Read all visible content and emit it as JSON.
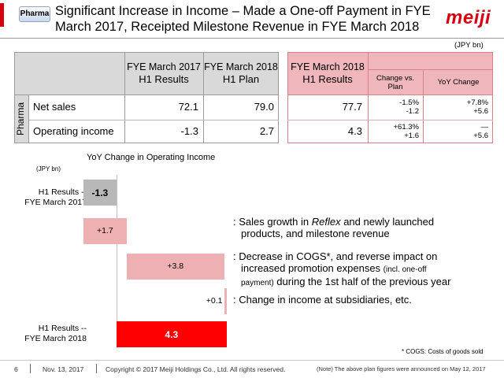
{
  "header": {
    "badge": "Pharma",
    "title_line1": "Significant Increase in Income – Made a One-off Payment in FYE",
    "title_line2": "March 2017, Receipted Milestone Revenue in FYE March 2018",
    "logo": "meiji"
  },
  "table": {
    "unit": "(JPY bn)",
    "side_label": "Pharma",
    "col1_l1": "FYE March 2017",
    "col1_l2": "H1 Results",
    "col2_l1": "FYE March 2018",
    "col2_l2": "H1 Plan",
    "col3_l1": "FYE March 2018",
    "col3_l2": "H1 Results",
    "col4": "Change vs. Plan",
    "col5": "YoY Change",
    "rows": [
      {
        "label": "Net sales",
        "v2017": "72.1",
        "plan": "79.0",
        "result": "77.7",
        "cvp_pct": "-1.5%",
        "cvp_abs": "-1.2",
        "yoy_pct": "+7.8%",
        "yoy_abs": "+5.6"
      },
      {
        "label": "Operating income",
        "v2017": "-1.3",
        "plan": "2.7",
        "result": "4.3",
        "cvp_pct": "+61.3%",
        "cvp_abs": "+1.6",
        "yoy_pct": "—",
        "yoy_abs": "+5.6"
      }
    ]
  },
  "chart_data": {
    "type": "bar",
    "title": "YoY Change in Operating Income",
    "unit": "(JPY bn)",
    "start_label_l1": "H1 Results --",
    "start_label_l2": "FYE March 2017",
    "end_label_l1": "H1 Results --",
    "end_label_l2": "FYE March 2018",
    "steps": [
      {
        "kind": "total",
        "value": -1.3,
        "label": "-1.3",
        "color": "#b8b8b8"
      },
      {
        "kind": "delta",
        "value": 1.7,
        "label": "+1.7",
        "color": "#efb0b4"
      },
      {
        "kind": "delta",
        "value": 3.8,
        "label": "+3.8",
        "color": "#efb0b4"
      },
      {
        "kind": "delta",
        "value": 0.1,
        "label": "+0.1",
        "color": "#efb0b4"
      },
      {
        "kind": "total",
        "value": 4.3,
        "label": "4.3",
        "color": "#ff0000"
      }
    ]
  },
  "notes": {
    "n1_a": ": Sales growth in ",
    "n1_em": "Reflex",
    "n1_b": " and newly launched",
    "n1_c": "products, and milestone revenue",
    "n2_a": ": Decrease in COGS*, and reverse impact on",
    "n2_b": "increased promotion expenses ",
    "n2_small": "(incl. one-off",
    "n2_c_small": "payment)",
    "n2_c": " during the 1st half of the previous year",
    "n3": ": Change in income at subsidiaries, etc.",
    "cogs": "* COGS: Costs of goods sold"
  },
  "footer": {
    "page": "6",
    "date": "Nov. 13, 2017",
    "copyright": "Copyright © 2017 Meiji Holdings Co., Ltd. All rights reserved.",
    "note": "(Note) The above plan figures were announced on May 12, 2017"
  }
}
